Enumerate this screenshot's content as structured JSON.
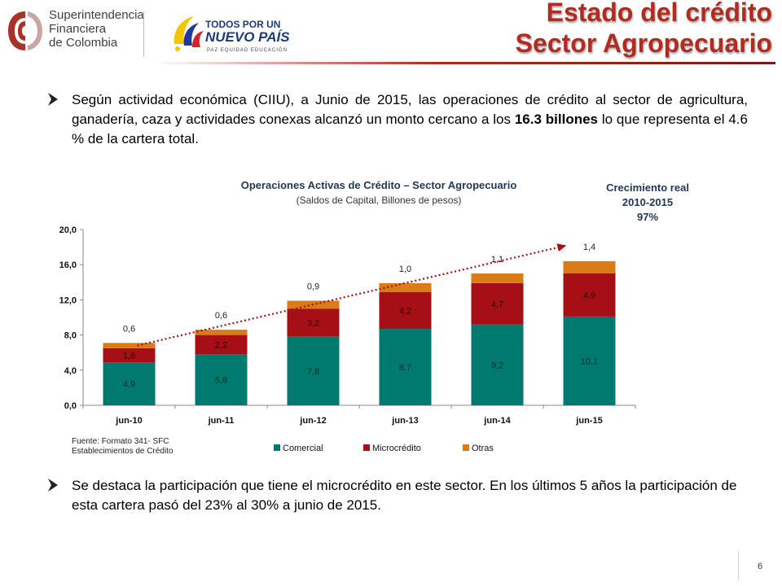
{
  "header": {
    "sfc_logo_lines": [
      "Superintendencia",
      "Financiera",
      "de Colombia"
    ],
    "gov_logo_lines": [
      "TODOS POR UN",
      "NUEVO PAÍS",
      "PAZ  EQUIDAD  EDUCACIÓN"
    ],
    "title_line1": "Estado del crédito",
    "title_line2": "Sector Agropecuario"
  },
  "bullets": {
    "b1_part1": "Según actividad económica (CIIU), a Junio de 2015,  las operaciones de crédito al sector de agricultura, ganadería, caza y actividades conexas alcanzó un monto cercano a los ",
    "b1_bold": "16.3 billones",
    "b1_part2": " lo que representa el 4.6 % de la cartera total.",
    "b2": "Se destaca la participación que tiene el microcrédito en este sector. En los últimos 5 años la participación de esta cartera pasó del 23% al 30% a junio de 2015."
  },
  "chart_data": {
    "type": "bar",
    "stacked": true,
    "title": "Operaciones Activas de Crédito – Sector Agropecuario",
    "subtitle": "(Saldos de Capital, Billones de pesos)",
    "categories": [
      "jun-10",
      "jun-11",
      "jun-12",
      "jun-13",
      "jun-14",
      "jun-15"
    ],
    "series": [
      {
        "name": "Comercial",
        "color": "#007a6e",
        "values": [
          4.9,
          5.8,
          7.8,
          8.7,
          9.2,
          10.1
        ],
        "labels": [
          "4,9",
          "5,8",
          "7,8",
          "8,7",
          "9,2",
          "10,1"
        ]
      },
      {
        "name": "Microcrédito",
        "color": "#a50f15",
        "values": [
          1.6,
          2.2,
          3.2,
          4.2,
          4.7,
          4.9
        ],
        "labels": [
          "1,6",
          "2,2",
          "3,2",
          "4,2",
          "4,7",
          "4,9"
        ]
      },
      {
        "name": "Otras",
        "color": "#d97b16",
        "values": [
          0.6,
          0.6,
          0.9,
          1.0,
          1.1,
          1.4
        ],
        "labels": [
          "0,6",
          "0,6",
          "0,9",
          "1,0",
          "1,1",
          "1,4"
        ]
      }
    ],
    "ylim": [
      0,
      20
    ],
    "yticks": [
      0,
      4,
      8,
      12,
      16,
      20
    ],
    "ytick_labels": [
      "0,0",
      "4,0",
      "8,0",
      "12,0",
      "16,0",
      "20,0"
    ],
    "legend_position": "bottom",
    "grid": false,
    "trend_arrow": {
      "from_category": "jun-10",
      "to_category": "jun-15",
      "color": "#a50f15",
      "style": "dotted"
    },
    "annotation": {
      "title": "Crecimiento real",
      "period": "2010-2015",
      "value": "97%"
    },
    "source_lines": [
      "Fuente: Formato 341- SFC",
      "Establecimientos de Crédito"
    ]
  },
  "footer": {
    "page_number": "6"
  }
}
